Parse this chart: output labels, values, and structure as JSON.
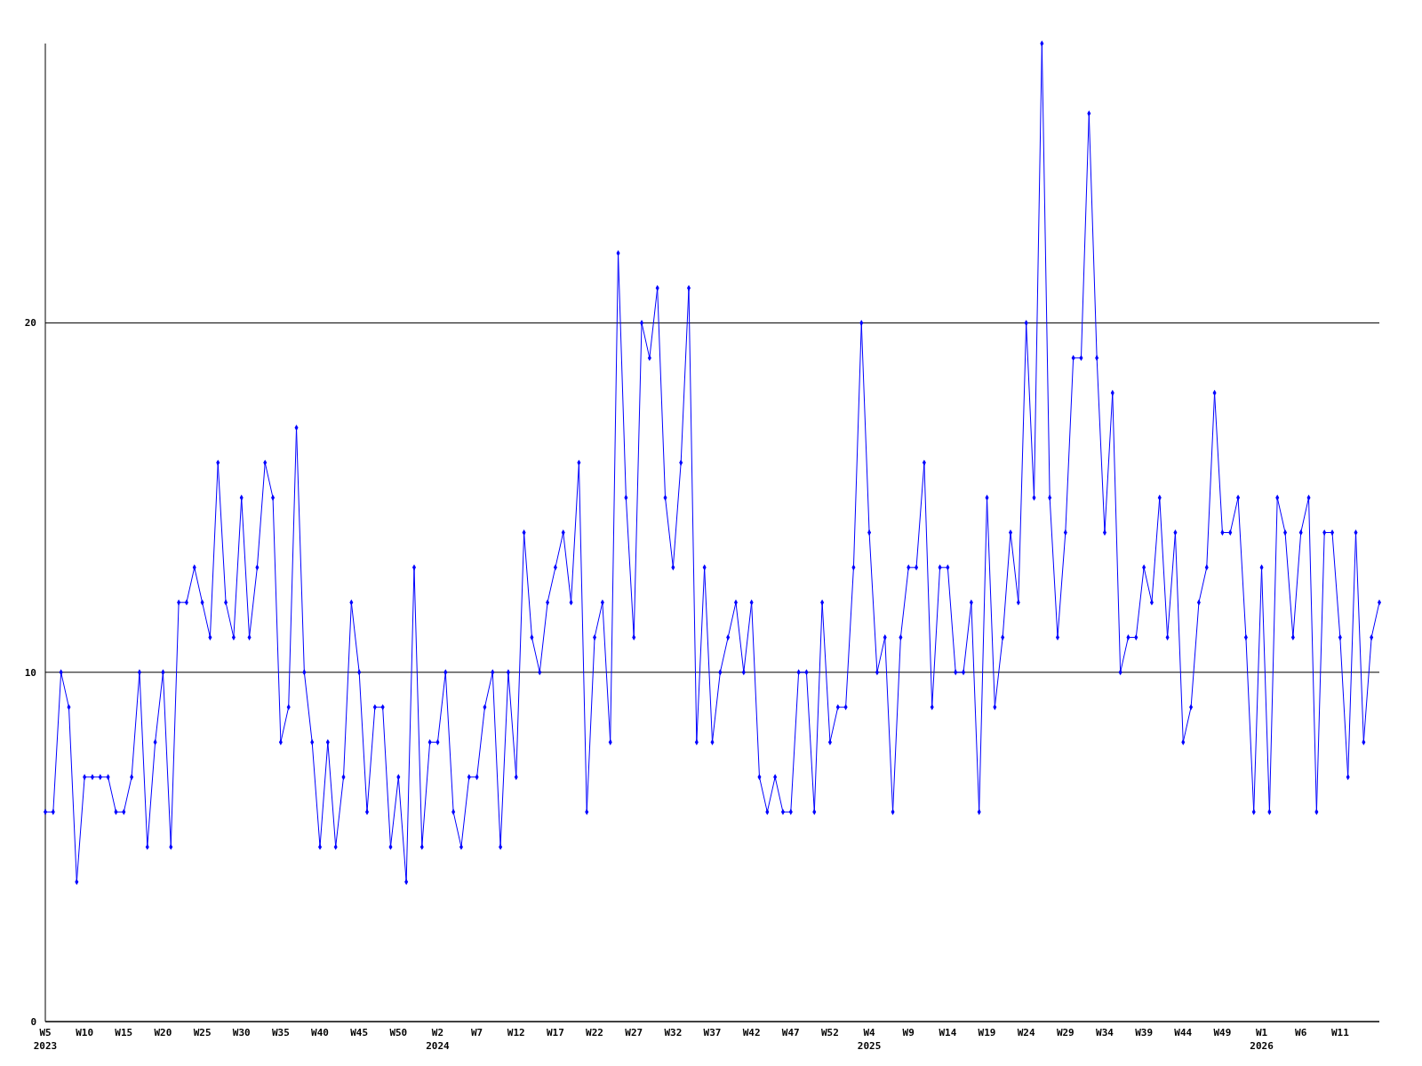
{
  "chart_data": {
    "type": "line",
    "categories": [
      "W5\n2023",
      null,
      null,
      null,
      null,
      "W10",
      null,
      null,
      null,
      null,
      "W15",
      null,
      null,
      null,
      null,
      "W20",
      null,
      null,
      null,
      null,
      "W25",
      null,
      null,
      null,
      null,
      "W30",
      null,
      null,
      null,
      null,
      "W35",
      null,
      null,
      null,
      null,
      "W40",
      null,
      null,
      null,
      null,
      "W45",
      null,
      null,
      null,
      null,
      "W50",
      null,
      null,
      null,
      null,
      "W2\n2024",
      null,
      null,
      null,
      null,
      "W7",
      null,
      null,
      null,
      null,
      "W12",
      null,
      null,
      null,
      null,
      "W17",
      null,
      null,
      null,
      null,
      "W22",
      null,
      null,
      null,
      null,
      "W27",
      null,
      null,
      null,
      null,
      "W32",
      null,
      null,
      null,
      null,
      "W37",
      null,
      null,
      null,
      null,
      "W42",
      null,
      null,
      null,
      null,
      "W47",
      null,
      null,
      null,
      null,
      "W52",
      null,
      null,
      null,
      null,
      "W4\n2025",
      null,
      null,
      null,
      null,
      "W9",
      null,
      null,
      null,
      null,
      "W14",
      null,
      null,
      null,
      null,
      "W19",
      null,
      null,
      null,
      null,
      "W24",
      null,
      null,
      null,
      null,
      "W29",
      null,
      null,
      null,
      null,
      "W34",
      null,
      null,
      null,
      null,
      "W39",
      null,
      null,
      null,
      null,
      "W44",
      null,
      null,
      null,
      null,
      "W49",
      null,
      null,
      null,
      null,
      "W1\n2026",
      null,
      null,
      null,
      null,
      "W6",
      null,
      null,
      null,
      null,
      "W11",
      null,
      null,
      null,
      null,
      null
    ],
    "series": [
      {
        "color": "#0000ff",
        "values": [
          6,
          6,
          10,
          9,
          4,
          7,
          7,
          7,
          7,
          6,
          6,
          7,
          10,
          5,
          8,
          10,
          5,
          12,
          12,
          13,
          12,
          11,
          16,
          12,
          11,
          15,
          11,
          13,
          16,
          15,
          8,
          9,
          17,
          10,
          8,
          5,
          8,
          5,
          7,
          12,
          10,
          6,
          9,
          9,
          5,
          7,
          4,
          13,
          5,
          8,
          8,
          10,
          6,
          5,
          7,
          7,
          9,
          10,
          5,
          10,
          7,
          14,
          11,
          10,
          12,
          13,
          14,
          12,
          16,
          6,
          11,
          12,
          8,
          22,
          15,
          11,
          20,
          19,
          21,
          15,
          13,
          16,
          21,
          8,
          13,
          8,
          10,
          11,
          12,
          10,
          12,
          7,
          6,
          7,
          6,
          6,
          10,
          10,
          6,
          12,
          8,
          9,
          9,
          13,
          20,
          14,
          10,
          11,
          6,
          11,
          13,
          13,
          16,
          9,
          13,
          13,
          10,
          10,
          12,
          6,
          15,
          9,
          11,
          14,
          12,
          20,
          15,
          28,
          15,
          11,
          14,
          19,
          19,
          26,
          19,
          14,
          18,
          10,
          11,
          11,
          13,
          12,
          15,
          11,
          14,
          8,
          9,
          12,
          13,
          18,
          14,
          14,
          15,
          11,
          6,
          13,
          6,
          15,
          14,
          11,
          14,
          15,
          6,
          14,
          14,
          11,
          7,
          14,
          8,
          11,
          12
        ]
      }
    ],
    "ylim": [
      0,
      28
    ],
    "yticks": [
      0,
      10,
      20
    ],
    "grid": "y",
    "marker": "diamond",
    "line_style": "solid"
  }
}
